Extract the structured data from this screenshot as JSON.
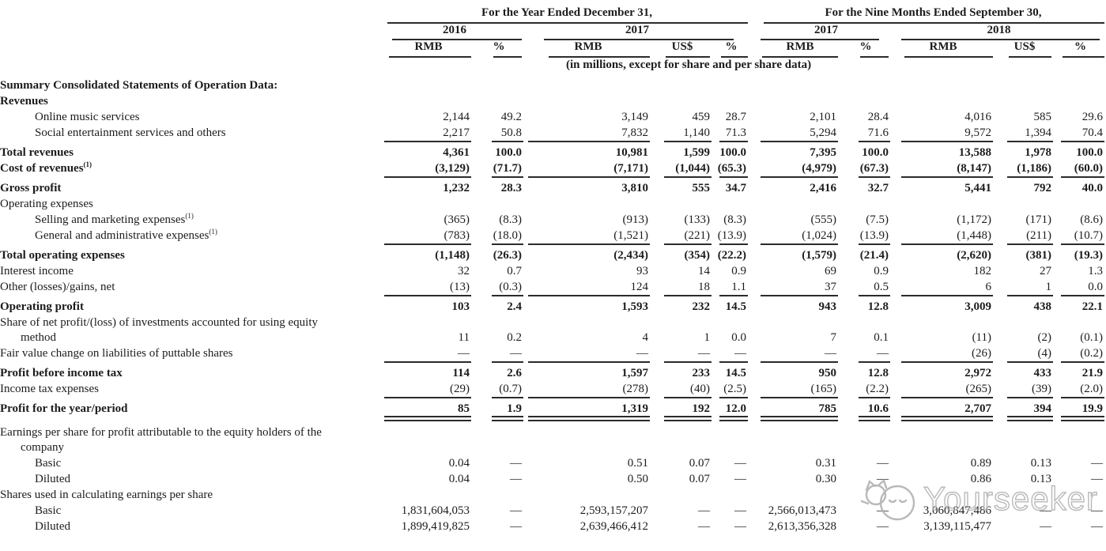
{
  "table": {
    "header": {
      "group_year": "For the Year Ended December 31,",
      "group_nine_months": "For the Nine Months Ended September 30,",
      "year_cols": [
        "2016",
        "2017",
        "2017",
        "2018"
      ],
      "unit_cols": [
        "RMB",
        "%",
        "RMB",
        "US$",
        "%",
        "RMB",
        "%",
        "RMB",
        "US$",
        "%"
      ],
      "note": "(in millions, except for share and per share data)"
    },
    "rows": [
      {
        "label": "Summary Consolidated Statements of Operation Data:",
        "bold": true
      },
      {
        "label": "Revenues",
        "bold": true
      },
      {
        "label": "Online music services",
        "indent": true,
        "values": [
          "2,144",
          "49.2",
          "3,149",
          "459",
          "28.7",
          "2,101",
          "28.4",
          "4,016",
          "585",
          "29.6"
        ]
      },
      {
        "label": "Social entertainment services and others",
        "indent": true,
        "underline": "single",
        "values": [
          "2,217",
          "50.8",
          "7,832",
          "1,140",
          "71.3",
          "5,294",
          "71.6",
          "9,572",
          "1,394",
          "70.4"
        ]
      },
      {
        "label": "Total revenues",
        "bold": true,
        "values": [
          "4,361",
          "100.0",
          "10,981",
          "1,599",
          "100.0",
          "7,395",
          "100.0",
          "13,588",
          "1,978",
          "100.0"
        ]
      },
      {
        "label": "Cost of revenues",
        "sup": "(1)",
        "bold": true,
        "underline": "single",
        "values": [
          "(3,129)",
          "(71.7)",
          "(7,171)",
          "(1,044)",
          "(65.3)",
          "(4,979)",
          "(67.3)",
          "(8,147)",
          "(1,186)",
          "(60.0)"
        ]
      },
      {
        "label": "Gross profit",
        "bold": true,
        "values": [
          "1,232",
          "28.3",
          "3,810",
          "555",
          "34.7",
          "2,416",
          "32.7",
          "5,441",
          "792",
          "40.0"
        ]
      },
      {
        "label": "Operating expenses"
      },
      {
        "label": "Selling and marketing expenses",
        "sup": "(1)",
        "indent": true,
        "values": [
          "(365)",
          "(8.3)",
          "(913)",
          "(133)",
          "(8.3)",
          "(555)",
          "(7.5)",
          "(1,172)",
          "(171)",
          "(8.6)"
        ]
      },
      {
        "label": "General and administrative expenses",
        "sup": "(1)",
        "indent": true,
        "underline": "single",
        "values": [
          "(783)",
          "(18.0)",
          "(1,521)",
          "(221)",
          "(13.9)",
          "(1,024)",
          "(13.9)",
          "(1,448)",
          "(211)",
          "(10.7)"
        ]
      },
      {
        "label": "Total operating expenses",
        "bold": true,
        "values": [
          "(1,148)",
          "(26.3)",
          "(2,434)",
          "(354)",
          "(22.2)",
          "(1,579)",
          "(21.4)",
          "(2,620)",
          "(381)",
          "(19.3)"
        ]
      },
      {
        "label": "Interest income",
        "values": [
          "32",
          "0.7",
          "93",
          "14",
          "0.9",
          "69",
          "0.9",
          "182",
          "27",
          "1.3"
        ]
      },
      {
        "label": "Other (losses)/gains, net",
        "underline": "single",
        "values": [
          "(13)",
          "(0.3)",
          "124",
          "18",
          "1.1",
          "37",
          "0.5",
          "6",
          "1",
          "0.0"
        ]
      },
      {
        "label": "Operating profit",
        "bold": true,
        "values": [
          "103",
          "2.4",
          "1,593",
          "232",
          "14.5",
          "943",
          "12.8",
          "3,009",
          "438",
          "22.1"
        ]
      },
      {
        "label": "Share of net profit/(loss) of investments accounted for using equity",
        "label2": "method",
        "values": [
          "11",
          "0.2",
          "4",
          "1",
          "0.0",
          "7",
          "0.1",
          "(11)",
          "(2)",
          "(0.1)"
        ]
      },
      {
        "label": "Fair value change on liabilities of puttable shares",
        "underline": "single",
        "values": [
          "—",
          "—",
          "—",
          "—",
          "—",
          "—",
          "—",
          "(26)",
          "(4)",
          "(0.2)"
        ]
      },
      {
        "label": "Profit before income tax",
        "bold": true,
        "values": [
          "114",
          "2.6",
          "1,597",
          "233",
          "14.5",
          "950",
          "12.8",
          "2,972",
          "433",
          "21.9"
        ]
      },
      {
        "label": "Income tax expenses",
        "underline": "single",
        "values": [
          "(29)",
          "(0.7)",
          "(278)",
          "(40)",
          "(2.5)",
          "(165)",
          "(2.2)",
          "(265)",
          "(39)",
          "(2.0)"
        ]
      },
      {
        "label": "Profit for the year/period",
        "bold": true,
        "underline": "double",
        "values": [
          "85",
          "1.9",
          "1,319",
          "192",
          "12.0",
          "785",
          "10.6",
          "2,707",
          "394",
          "19.9"
        ]
      },
      {
        "label": "Earnings per share for profit attributable to the equity holders of the",
        "label2": "company"
      },
      {
        "label": "Basic",
        "indent": true,
        "values": [
          "0.04",
          "—",
          "0.51",
          "0.07",
          "—",
          "0.31",
          "—",
          "0.89",
          "0.13",
          "—"
        ]
      },
      {
        "label": "Diluted",
        "indent": true,
        "values": [
          "0.04",
          "—",
          "0.50",
          "0.07",
          "—",
          "0.30",
          "—",
          "0.86",
          "0.13",
          "—"
        ]
      },
      {
        "label": "Shares used in calculating earnings per share"
      },
      {
        "label": "Basic",
        "indent": true,
        "values": [
          "1,831,604,053",
          "—",
          "2,593,157,207",
          "—",
          "—",
          "2,566,013,473",
          "—",
          "3,060,847,486",
          "—",
          "—"
        ]
      },
      {
        "label": "Diluted",
        "indent": true,
        "values": [
          "1,899,419,825",
          "—",
          "2,639,466,412",
          "—",
          "—",
          "2,613,356,328",
          "—",
          "3,139,115,477",
          "—",
          "—"
        ]
      }
    ]
  },
  "watermark": {
    "text": "Yourseeker",
    "logo": "cat-mascot-icon",
    "color": "#b2b2b2"
  }
}
